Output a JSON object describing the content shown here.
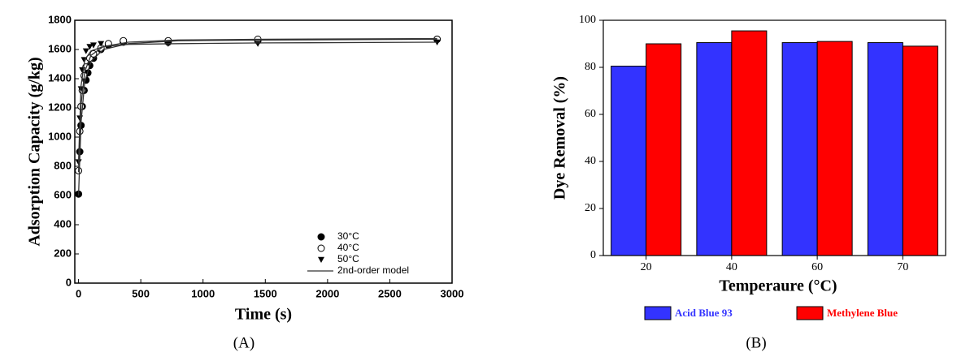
{
  "chart_data": [
    {
      "type": "scatter",
      "label": "(A)",
      "xlabel": "Time (s)",
      "ylabel": "Adsorption Capacity (g/kg)",
      "xlim": [
        -30,
        3000
      ],
      "xticks": [
        0,
        500,
        1000,
        1500,
        2000,
        2500,
        3000
      ],
      "ylim": [
        0,
        1800
      ],
      "yticks": [
        0,
        200,
        400,
        600,
        800,
        1000,
        1200,
        1400,
        1600,
        1800
      ],
      "legend": "lower right",
      "series": [
        {
          "name": "30°C",
          "marker": "filled-circle",
          "color": "#000000",
          "x": [
            0,
            10,
            20,
            30,
            45,
            60,
            75,
            90,
            120,
            180,
            240,
            360,
            720,
            1440,
            2880
          ],
          "values": [
            610,
            900,
            1080,
            1210,
            1320,
            1390,
            1440,
            1490,
            1540,
            1600,
            1630,
            1650,
            1650,
            1660,
            1670
          ]
        },
        {
          "name": "40°C",
          "marker": "open-circle",
          "color": "#000000",
          "x": [
            0,
            10,
            20,
            30,
            45,
            60,
            90,
            120,
            180,
            240,
            360,
            720,
            1440,
            2880
          ],
          "values": [
            770,
            1040,
            1210,
            1320,
            1420,
            1480,
            1540,
            1570,
            1610,
            1640,
            1660,
            1660,
            1670,
            1670
          ]
        },
        {
          "name": "50°C",
          "marker": "triangle-down",
          "color": "#000000",
          "x": [
            0,
            10,
            20,
            30,
            45,
            60,
            90,
            120,
            180,
            720,
            1440,
            2880
          ],
          "values": [
            830,
            1130,
            1330,
            1460,
            1530,
            1590,
            1620,
            1630,
            1640,
            1640,
            1640,
            1650
          ]
        },
        {
          "name": "2nd-order model",
          "marker": "line",
          "color": "#333333",
          "x": [
            0,
            20,
            50,
            100,
            200,
            400,
            800,
            1500,
            2880
          ],
          "curves": [
            [
              600,
              1100,
              1380,
              1520,
              1600,
              1640,
              1660,
              1665,
              1670
            ],
            [
              760,
              1220,
              1450,
              1560,
              1620,
              1650,
              1665,
              1670,
              1675
            ],
            [
              830,
              1350,
              1530,
              1590,
              1620,
              1635,
              1640,
              1645,
              1650
            ]
          ]
        }
      ]
    },
    {
      "type": "bar",
      "label": "(B)",
      "xlabel": "Temperaure (°C)",
      "ylabel": "Dye Removal (%)",
      "categories": [
        "20",
        "40",
        "60",
        "70"
      ],
      "ylim": [
        0,
        100
      ],
      "yticks": [
        0,
        20,
        40,
        60,
        80,
        100
      ],
      "legend": "bottom",
      "series": [
        {
          "name": "Acid Blue 93",
          "color": "#3333ff",
          "values": [
            80.5,
            90.5,
            90.5,
            90.5
          ]
        },
        {
          "name": "Methylene Blue",
          "color": "#ff0000",
          "values": [
            90,
            95.5,
            91,
            89
          ]
        }
      ]
    }
  ]
}
